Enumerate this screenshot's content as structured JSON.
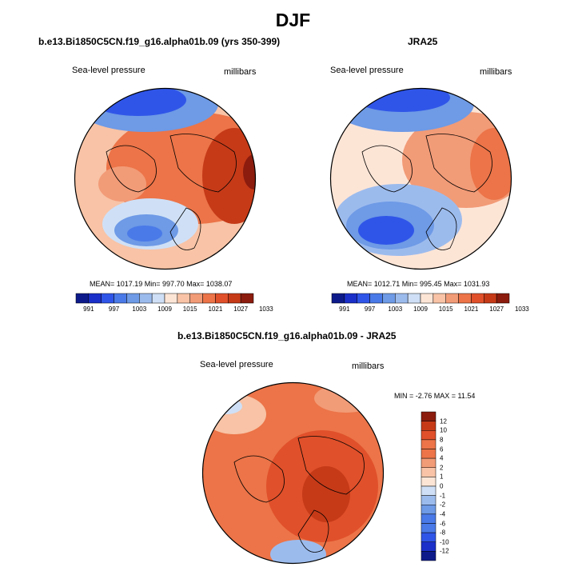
{
  "figure": {
    "title": "DJF"
  },
  "colors": {
    "seq": [
      "#0d1b8a",
      "#1b2fc9",
      "#2f55e8",
      "#4a7ae8",
      "#6e9ae6",
      "#9cbbed",
      "#cfe0f6",
      "#fde5d6",
      "#f8c3a6",
      "#f29b77",
      "#ec7448",
      "#e0502a",
      "#c63a18",
      "#8b1c0e"
    ],
    "land": "#000000"
  },
  "chart_data": [
    {
      "type": "heatmap",
      "panel": "model",
      "title": "b.e13.Bi1850C5CN.f19_g16.alpha01b.09 (yrs 350-399)",
      "left_label": "Sea-level pressure",
      "right_label": "millibars",
      "stats": "MEAN= 1017.19  Min= 997.70  Max= 1038.07",
      "mean": 1017.19,
      "min": 997.7,
      "max": 1038.07,
      "colorbar_ticks": [
        "991",
        "997",
        "1003",
        "1009",
        "1015",
        "1021",
        "1027",
        "1033"
      ]
    },
    {
      "type": "heatmap",
      "panel": "reanalysis",
      "title": "JRA25",
      "left_label": "Sea-level pressure",
      "right_label": "millibars",
      "stats": "MEAN= 1012.71  Min= 995.45  Max= 1031.93",
      "mean": 1012.71,
      "min": 995.45,
      "max": 1031.93,
      "colorbar_ticks": [
        "991",
        "997",
        "1003",
        "1009",
        "1015",
        "1021",
        "1027",
        "1033"
      ]
    },
    {
      "type": "heatmap",
      "panel": "difference",
      "title": "b.e13.Bi1850C5CN.f19_g16.alpha01b.09 - JRA25",
      "left_label": "Sea-level pressure",
      "right_label": "millibars",
      "stats": "MIN =  -2.76 MAX =  11.54",
      "min": -2.76,
      "max": 11.54,
      "colorbar_ticks": [
        "12",
        "10",
        "8",
        "6",
        "4",
        "2",
        "1",
        "0",
        "-1",
        "-2",
        "-4",
        "-6",
        "-8",
        "-10",
        "-12"
      ]
    }
  ]
}
